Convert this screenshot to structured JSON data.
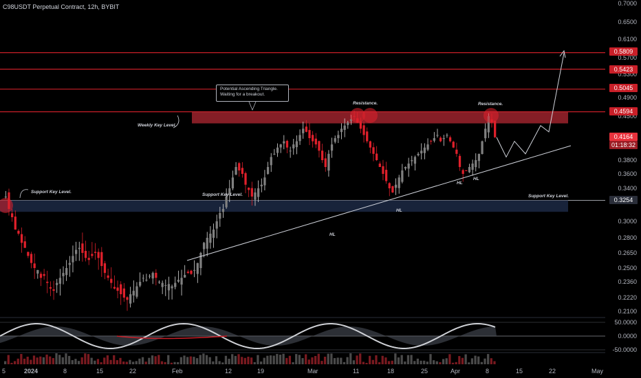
{
  "header": {
    "title": "C98USDT Perpetual Contract, 12h, BYBIT"
  },
  "price_scale": [
    "0.7000",
    "0.6500",
    "0.6100",
    "0.5700",
    "0.5300",
    "0.4900",
    "0.4500",
    "0.3800",
    "0.3600",
    "0.3400",
    "0.3000",
    "0.2800",
    "0.2650",
    "0.2500",
    "0.2360",
    "0.2220",
    "0.2100"
  ],
  "price_tags": [
    {
      "label": "0.5809",
      "color": "#c91f28"
    },
    {
      "label": "0.5423",
      "color": "#c91f28"
    },
    {
      "label": "0.5045",
      "color": "#c91f28"
    },
    {
      "label": "0.4594",
      "color": "#c91f28"
    },
    {
      "label": "0.4164",
      "color": "#e8323c",
      "sub": "01:18:32"
    },
    {
      "label": "0.3254",
      "color": "#2a2e39"
    }
  ],
  "osc_scale": [
    "50.0000",
    "0.0000",
    "-50.0000"
  ],
  "x_labels": [
    "5",
    "2024",
    "8",
    "15",
    "22",
    "Feb",
    "12",
    "19",
    "Mar",
    "11",
    "18",
    "25",
    "Apr",
    "8",
    "15",
    "22",
    "May"
  ],
  "annotations": {
    "callout": "Potential Ascending Triangle. Waiting for a breakout.",
    "weekly_key": "Weekly Key Level.",
    "support_key": "Support Key Level.",
    "support_level_mid": "Support Key Level.",
    "support_level_right": "Support Key Level.",
    "resistance_1": "Resistance.",
    "resistance_2": "Resistance.",
    "hl_1": "HL",
    "hl_2": "HL",
    "hl_3": "HL",
    "hl_4": "HL"
  },
  "chart_data": {
    "type": "candlestick",
    "symbol": "C98USDT",
    "interval": "12h",
    "x_range": [
      "2023-12-05",
      "2024-05-01"
    ],
    "y_range": [
      0.205,
      0.7
    ],
    "current_price": 0.4164,
    "horizontal_levels": [
      0.5809,
      0.5423,
      0.5045,
      0.4594,
      0.3254
    ],
    "resistance_zone": [
      0.4594,
      0.4385
    ],
    "support_zone": [
      0.3254,
      0.3115
    ],
    "close_path": [
      0.33,
      0.315,
      0.305,
      0.29,
      0.285,
      0.275,
      0.27,
      0.262,
      0.255,
      0.25,
      0.248,
      0.24,
      0.242,
      0.235,
      0.23,
      0.228,
      0.235,
      0.24,
      0.245,
      0.25,
      0.255,
      0.262,
      0.268,
      0.27,
      0.265,
      0.26,
      0.258,
      0.262,
      0.265,
      0.26,
      0.252,
      0.245,
      0.24,
      0.235,
      0.23,
      0.228,
      0.225,
      0.222,
      0.22,
      0.225,
      0.228,
      0.232,
      0.236,
      0.24,
      0.238,
      0.242,
      0.245,
      0.24,
      0.236,
      0.235,
      0.233,
      0.234,
      0.232,
      0.235,
      0.238,
      0.24,
      0.243,
      0.245,
      0.244,
      0.248,
      0.255,
      0.265,
      0.275,
      0.28,
      0.285,
      0.29,
      0.3,
      0.31,
      0.315,
      0.33,
      0.34,
      0.355,
      0.37,
      0.365,
      0.36,
      0.345,
      0.338,
      0.33,
      0.335,
      0.34,
      0.345,
      0.355,
      0.37,
      0.385,
      0.39,
      0.4,
      0.405,
      0.41,
      0.4,
      0.395,
      0.405,
      0.41,
      0.42,
      0.43,
      0.425,
      0.415,
      0.41,
      0.405,
      0.395,
      0.38,
      0.37,
      0.39,
      0.405,
      0.415,
      0.42,
      0.43,
      0.435,
      0.44,
      0.445,
      0.45,
      0.44,
      0.43,
      0.42,
      0.41,
      0.4,
      0.39,
      0.38,
      0.37,
      0.36,
      0.35,
      0.34,
      0.335,
      0.345,
      0.355,
      0.365,
      0.37,
      0.375,
      0.38,
      0.385,
      0.39,
      0.395,
      0.4,
      0.405,
      0.41,
      0.415,
      0.42,
      0.41,
      0.415,
      0.42,
      0.41,
      0.4,
      0.39,
      0.37,
      0.36,
      0.365,
      0.37,
      0.375,
      0.38,
      0.39,
      0.41,
      0.43,
      0.45,
      0.44,
      0.4164
    ],
    "projection": [
      0.4164,
      0.385,
      0.41,
      0.39,
      0.435,
      0.425,
      0.58
    ]
  }
}
